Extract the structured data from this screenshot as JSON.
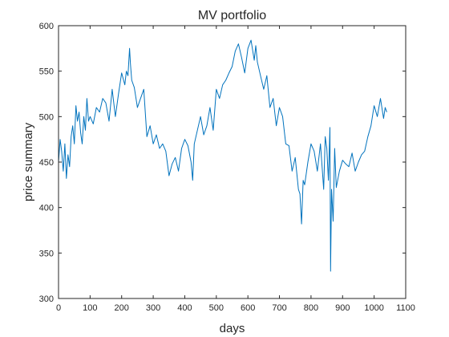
{
  "chart_data": {
    "type": "line",
    "title": "MV portfolio",
    "xlabel": "days",
    "ylabel": "price summary",
    "xlim": [
      0,
      1100
    ],
    "ylim": [
      300,
      600
    ],
    "xticks": [
      0,
      100,
      200,
      300,
      400,
      500,
      600,
      700,
      800,
      900,
      1000,
      1100
    ],
    "yticks": [
      300,
      350,
      400,
      450,
      500,
      550,
      600
    ],
    "grid": false,
    "box": true,
    "series": [
      {
        "color": "#0072BD",
        "x": [
          0,
          5,
          10,
          15,
          20,
          25,
          30,
          35,
          40,
          45,
          50,
          55,
          60,
          65,
          70,
          75,
          80,
          85,
          90,
          95,
          100,
          110,
          120,
          130,
          140,
          150,
          160,
          170,
          180,
          190,
          200,
          210,
          215,
          220,
          225,
          228,
          232,
          240,
          250,
          260,
          270,
          280,
          290,
          300,
          310,
          320,
          330,
          340,
          350,
          360,
          370,
          380,
          390,
          400,
          410,
          420,
          425,
          430,
          440,
          450,
          460,
          470,
          480,
          490,
          500,
          510,
          520,
          530,
          540,
          550,
          560,
          570,
          580,
          590,
          600,
          610,
          620,
          625,
          630,
          640,
          650,
          660,
          670,
          680,
          690,
          700,
          710,
          720,
          730,
          740,
          750,
          760,
          765,
          770,
          775,
          780,
          790,
          800,
          810,
          820,
          830,
          840,
          845,
          850,
          855,
          860,
          862,
          865,
          870,
          875,
          880,
          890,
          900,
          910,
          920,
          930,
          940,
          950,
          960,
          970,
          980,
          990,
          1000,
          1010,
          1020,
          1030,
          1035,
          1040
        ],
        "y": [
          450,
          475,
          462,
          440,
          470,
          432,
          458,
          445,
          478,
          490,
          470,
          512,
          495,
          505,
          482,
          470,
          500,
          485,
          520,
          495,
          500,
          492,
          510,
          505,
          520,
          515,
          495,
          530,
          500,
          525,
          548,
          535,
          550,
          545,
          575,
          558,
          540,
          532,
          510,
          520,
          530,
          478,
          490,
          470,
          480,
          465,
          470,
          462,
          435,
          448,
          455,
          440,
          465,
          475,
          468,
          450,
          430,
          470,
          485,
          500,
          480,
          490,
          510,
          485,
          530,
          520,
          535,
          540,
          548,
          555,
          572,
          580,
          565,
          548,
          575,
          584,
          562,
          578,
          560,
          545,
          530,
          545,
          510,
          520,
          490,
          510,
          500,
          470,
          468,
          440,
          455,
          420,
          415,
          382,
          430,
          425,
          450,
          470,
          462,
          440,
          470,
          420,
          478,
          465,
          430,
          488,
          330,
          420,
          385,
          465,
          422,
          440,
          452,
          448,
          445,
          460,
          440,
          450,
          458,
          462,
          478,
          490,
          512,
          500,
          520,
          498,
          510,
          505
        ]
      }
    ]
  }
}
